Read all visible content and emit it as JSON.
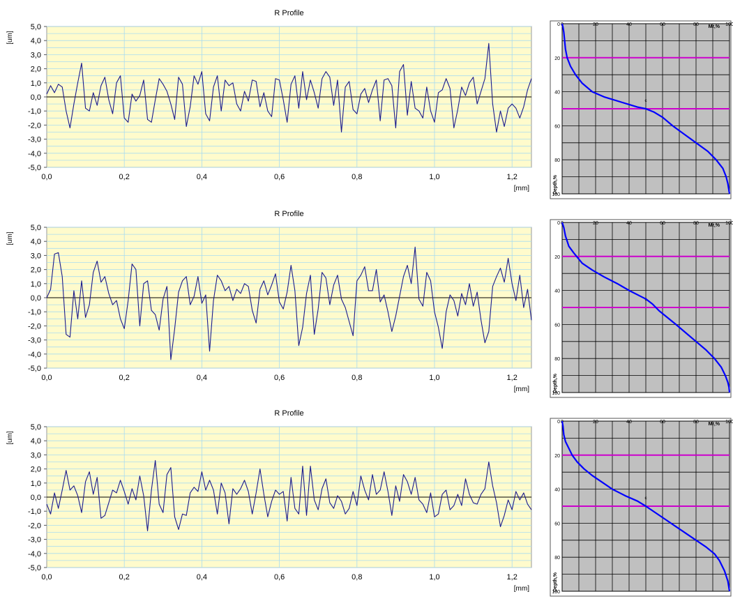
{
  "chart_data": [
    {
      "type": "line",
      "title": "R Profile",
      "xlabel": "[mm]",
      "ylabel": "[um]",
      "xlim": [
        0,
        1.25
      ],
      "ylim": [
        -5,
        5
      ],
      "xticks": [
        "0,0",
        "0,2",
        "0,4",
        "0,6",
        "0,8",
        "1,0",
        "1,2"
      ],
      "yticks": [
        "5,0",
        "4,0",
        "3,0",
        "2,0",
        "1,0",
        "0,0",
        "-1,0",
        "-2,0",
        "-3,0",
        "-4,0",
        "-5,0"
      ],
      "grid": true,
      "series": [
        {
          "x": [
            0.0,
            0.01,
            0.02,
            0.03,
            0.04,
            0.05,
            0.06,
            0.07,
            0.08,
            0.09,
            0.1,
            0.11,
            0.12,
            0.13,
            0.14,
            0.15,
            0.16,
            0.17,
            0.18,
            0.19,
            0.2,
            0.21,
            0.22,
            0.23,
            0.24,
            0.25,
            0.26,
            0.27,
            0.28,
            0.29,
            0.3,
            0.31,
            0.32,
            0.33,
            0.34,
            0.35,
            0.36,
            0.37,
            0.38,
            0.39,
            0.4,
            0.41,
            0.42,
            0.43,
            0.44,
            0.45,
            0.46,
            0.47,
            0.48,
            0.49,
            0.5,
            0.51,
            0.52,
            0.53,
            0.54,
            0.55,
            0.56,
            0.57,
            0.58,
            0.59,
            0.6,
            0.61,
            0.62,
            0.63,
            0.64,
            0.65,
            0.66,
            0.67,
            0.68,
            0.69,
            0.7,
            0.71,
            0.72,
            0.73,
            0.74,
            0.75,
            0.76,
            0.77,
            0.78,
            0.79,
            0.8,
            0.81,
            0.82,
            0.83,
            0.84,
            0.85,
            0.86,
            0.87,
            0.88,
            0.89,
            0.9,
            0.91,
            0.92,
            0.93,
            0.94,
            0.95,
            0.96,
            0.97,
            0.98,
            0.99,
            1.0,
            1.01,
            1.02,
            1.03,
            1.04,
            1.05,
            1.06,
            1.07,
            1.08,
            1.09,
            1.1,
            1.11,
            1.12,
            1.13,
            1.14,
            1.15,
            1.16,
            1.17,
            1.18,
            1.19,
            1.2,
            1.21,
            1.22,
            1.23,
            1.24,
            1.25
          ],
          "y": [
            0.2,
            0.8,
            0.3,
            0.9,
            0.7,
            -1.0,
            -2.2,
            -0.5,
            1.0,
            2.4,
            -0.8,
            -1.0,
            0.3,
            -0.6,
            0.8,
            1.4,
            -0.2,
            -1.2,
            1.0,
            1.5,
            -1.5,
            -1.8,
            0.2,
            -0.3,
            0.1,
            1.2,
            -1.6,
            -1.8,
            -0.2,
            1.3,
            0.9,
            0.4,
            -0.5,
            -1.6,
            1.4,
            0.9,
            -2.1,
            -0.7,
            1.5,
            0.9,
            1.8,
            -1.2,
            -1.7,
            0.7,
            1.5,
            -1.0,
            1.2,
            0.8,
            1.0,
            -0.5,
            -1.0,
            0.4,
            -0.3,
            1.2,
            1.1,
            -0.7,
            0.3,
            -1.0,
            -1.4,
            1.3,
            1.2,
            -0.2,
            -1.8,
            0.9,
            1.5,
            -0.8,
            1.8,
            -0.2,
            1.2,
            0.3,
            -0.8,
            1.3,
            1.8,
            1.4,
            -0.6,
            1.2,
            -2.5,
            0.7,
            1.1,
            -0.9,
            -1.2,
            0.2,
            0.6,
            -0.4,
            0.5,
            1.2,
            -1.7,
            1.2,
            1.3,
            0.8,
            -2.2,
            1.8,
            2.3,
            -1.3,
            1.1,
            -0.8,
            -1.0,
            -1.5,
            0.7,
            -1.0,
            -1.8,
            0.3,
            0.5,
            1.3,
            0.6,
            -2.2,
            -0.9,
            0.7,
            0.1,
            1.0,
            1.4,
            -0.5,
            0.4,
            1.3,
            3.8,
            -0.5,
            -2.5,
            -1.0,
            -2.1,
            -0.8,
            -0.5,
            -0.8,
            -1.5,
            -0.7,
            0.5,
            1.3
          ]
        }
      ]
    },
    {
      "type": "line",
      "x_axis_label": "Mr,%",
      "y_axis_label": "Depth,%",
      "x_ticks": [
        "0",
        "20",
        "40",
        "60",
        "80",
        "100"
      ],
      "y_ticks": [
        "0",
        "20",
        "40",
        "60",
        "80",
        "100"
      ],
      "xlim": [
        0,
        100
      ],
      "ylim": [
        0,
        100
      ],
      "grid": true,
      "marker_text": "c",
      "marker_point": [
        50,
        46
      ],
      "reference_lines_depth": [
        20,
        50
      ],
      "series": [
        {
          "x": [
            0,
            0.5,
            1,
            1.5,
            2,
            3,
            5,
            8,
            12,
            18,
            25,
            35,
            45,
            50,
            55,
            60,
            66,
            73,
            80,
            87,
            92,
            96,
            98,
            99,
            99.5,
            100
          ],
          "y": [
            0,
            2,
            5,
            10,
            15,
            20,
            25,
            30,
            35,
            40,
            43,
            46,
            49,
            50,
            52,
            55,
            60,
            65,
            70,
            75,
            80,
            85,
            90,
            94,
            97,
            100
          ]
        }
      ]
    },
    {
      "type": "line",
      "title": "R Profile",
      "xlabel": "[mm]",
      "ylabel": "[um]",
      "xlim": [
        0,
        1.25
      ],
      "ylim": [
        -5,
        5
      ],
      "xticks": [
        "0,0",
        "0,2",
        "0,4",
        "0,6",
        "0,8",
        "1,0",
        "1,2"
      ],
      "yticks": [
        "5,0",
        "4,0",
        "3,0",
        "2,0",
        "1,0",
        "0,0",
        "-1,0",
        "-2,0",
        "-3,0",
        "-4,0",
        "-5,0"
      ],
      "grid": true,
      "series": [
        {
          "x": [
            0.0,
            0.01,
            0.02,
            0.03,
            0.04,
            0.05,
            0.06,
            0.07,
            0.08,
            0.09,
            0.1,
            0.11,
            0.12,
            0.13,
            0.14,
            0.15,
            0.16,
            0.17,
            0.18,
            0.19,
            0.2,
            0.21,
            0.22,
            0.23,
            0.24,
            0.25,
            0.26,
            0.27,
            0.28,
            0.29,
            0.3,
            0.31,
            0.32,
            0.33,
            0.34,
            0.35,
            0.36,
            0.37,
            0.38,
            0.39,
            0.4,
            0.41,
            0.42,
            0.43,
            0.44,
            0.45,
            0.46,
            0.47,
            0.48,
            0.49,
            0.5,
            0.51,
            0.52,
            0.53,
            0.54,
            0.55,
            0.56,
            0.57,
            0.58,
            0.59,
            0.6,
            0.61,
            0.62,
            0.63,
            0.64,
            0.65,
            0.66,
            0.67,
            0.68,
            0.69,
            0.7,
            0.71,
            0.72,
            0.73,
            0.74,
            0.75,
            0.76,
            0.77,
            0.78,
            0.79,
            0.8,
            0.81,
            0.82,
            0.83,
            0.84,
            0.85,
            0.86,
            0.87,
            0.88,
            0.89,
            0.9,
            0.91,
            0.92,
            0.93,
            0.94,
            0.95,
            0.96,
            0.97,
            0.98,
            0.99,
            1.0,
            1.01,
            1.02,
            1.03,
            1.04,
            1.05,
            1.06,
            1.07,
            1.08,
            1.09,
            1.1,
            1.11,
            1.12,
            1.13,
            1.14,
            1.15,
            1.16,
            1.17,
            1.18,
            1.19,
            1.2,
            1.21,
            1.22,
            1.23,
            1.24,
            1.25
          ],
          "y": [
            0.0,
            0.6,
            3.1,
            3.2,
            1.5,
            -2.6,
            -2.8,
            0.5,
            -1.5,
            1.2,
            -1.4,
            -0.5,
            1.8,
            2.6,
            1.1,
            1.5,
            0.3,
            -0.5,
            -0.2,
            -1.5,
            -2.2,
            -0.2,
            2.4,
            2.0,
            -2.0,
            1.0,
            1.2,
            -0.9,
            -1.2,
            -2.3,
            -0.1,
            0.8,
            -4.4,
            -2.2,
            0.4,
            1.2,
            1.5,
            -0.5,
            0.1,
            1.5,
            -0.4,
            0.2,
            -3.8,
            -0.2,
            1.6,
            1.2,
            0.5,
            0.8,
            -0.2,
            0.6,
            0.3,
            1.0,
            0.8,
            -0.9,
            -1.8,
            0.6,
            1.2,
            0.2,
            0.9,
            1.7,
            -0.3,
            -0.8,
            0.4,
            2.3,
            0.5,
            -3.4,
            -2.1,
            0.3,
            1.6,
            -2.6,
            -0.8,
            1.8,
            1.4,
            -0.5,
            0.9,
            1.6,
            -0.1,
            -0.7,
            -1.7,
            -2.7,
            1.2,
            1.6,
            2.2,
            0.5,
            0.5,
            2.0,
            -0.3,
            0.2,
            -1.0,
            -2.4,
            -1.3,
            0.1,
            1.5,
            2.3,
            1.0,
            3.6,
            -0.1,
            -0.6,
            1.8,
            1.2,
            -1.0,
            -2.1,
            -3.6,
            -1.0,
            0.2,
            -0.2,
            -1.3,
            0.3,
            -0.5,
            1.0,
            -0.6,
            0.4,
            -1.6,
            -3.2,
            -2.4,
            0.8,
            1.5,
            2.1,
            1.1,
            2.8,
            1.0,
            -0.2,
            1.6,
            -0.7,
            0.6,
            -1.6
          ]
        }
      ]
    },
    {
      "type": "line",
      "x_axis_label": "Mr,%",
      "y_axis_label": "Depth,%",
      "x_ticks": [
        "0",
        "20",
        "40",
        "60",
        "80",
        "100"
      ],
      "y_ticks": [
        "0",
        "20",
        "40",
        "60",
        "80",
        "100"
      ],
      "xlim": [
        0,
        100
      ],
      "ylim": [
        0,
        100
      ],
      "grid": true,
      "marker_text": "c",
      "marker_point": [
        50,
        46
      ],
      "reference_lines_depth": [
        20,
        50
      ],
      "series": [
        {
          "x": [
            0,
            1,
            2,
            4,
            7,
            12,
            18,
            25,
            33,
            40,
            46,
            50,
            54,
            58,
            63,
            68,
            74,
            80,
            86,
            91,
            95,
            97.5,
            99,
            99.7,
            100
          ],
          "y": [
            0,
            3,
            8,
            14,
            18,
            24,
            28,
            32,
            36,
            40,
            43,
            45,
            48,
            52,
            56,
            60,
            65,
            70,
            75,
            80,
            85,
            90,
            94,
            97,
            100
          ]
        }
      ]
    },
    {
      "type": "line",
      "title": "R Profile",
      "xlabel": "[mm]",
      "ylabel": "[um]",
      "xlim": [
        0,
        1.25
      ],
      "ylim": [
        -5,
        5
      ],
      "xticks": [
        "0,0",
        "0,2",
        "0,4",
        "0,6",
        "0,8",
        "1,0",
        "1,2"
      ],
      "yticks": [
        "5,0",
        "4,0",
        "3,0",
        "2,0",
        "1,0",
        "0,0",
        "-1,0",
        "-2,0",
        "-3,0",
        "-4,0",
        "-5,0"
      ],
      "grid": true,
      "series": [
        {
          "x": [
            0.0,
            0.01,
            0.02,
            0.03,
            0.04,
            0.05,
            0.06,
            0.07,
            0.08,
            0.09,
            0.1,
            0.11,
            0.12,
            0.13,
            0.14,
            0.15,
            0.16,
            0.17,
            0.18,
            0.19,
            0.2,
            0.21,
            0.22,
            0.23,
            0.24,
            0.25,
            0.26,
            0.27,
            0.28,
            0.29,
            0.3,
            0.31,
            0.32,
            0.33,
            0.34,
            0.35,
            0.36,
            0.37,
            0.38,
            0.39,
            0.4,
            0.41,
            0.42,
            0.43,
            0.44,
            0.45,
            0.46,
            0.47,
            0.48,
            0.49,
            0.5,
            0.51,
            0.52,
            0.53,
            0.54,
            0.55,
            0.56,
            0.57,
            0.58,
            0.59,
            0.6,
            0.61,
            0.62,
            0.63,
            0.64,
            0.65,
            0.66,
            0.67,
            0.68,
            0.69,
            0.7,
            0.71,
            0.72,
            0.73,
            0.74,
            0.75,
            0.76,
            0.77,
            0.78,
            0.79,
            0.8,
            0.81,
            0.82,
            0.83,
            0.84,
            0.85,
            0.86,
            0.87,
            0.88,
            0.89,
            0.9,
            0.91,
            0.92,
            0.93,
            0.94,
            0.95,
            0.96,
            0.97,
            0.98,
            0.99,
            1.0,
            1.01,
            1.02,
            1.03,
            1.04,
            1.05,
            1.06,
            1.07,
            1.08,
            1.09,
            1.1,
            1.11,
            1.12,
            1.13,
            1.14,
            1.15,
            1.16,
            1.17,
            1.18,
            1.19,
            1.2,
            1.21,
            1.22,
            1.23,
            1.24,
            1.25
          ],
          "y": [
            -0.5,
            -1.2,
            0.3,
            -0.8,
            0.5,
            1.9,
            0.5,
            0.8,
            0.1,
            -1.1,
            1.1,
            1.8,
            0.2,
            1.4,
            -1.5,
            -1.3,
            -0.4,
            0.5,
            0.3,
            1.2,
            0.4,
            -0.5,
            0.6,
            -0.2,
            1.5,
            0.1,
            -2.4,
            0.5,
            2.6,
            -0.5,
            -1.1,
            1.6,
            2.1,
            -1.4,
            -2.3,
            -1.2,
            -1.3,
            0.3,
            0.7,
            0.4,
            1.8,
            0.5,
            1.2,
            0.5,
            -1.2,
            1.0,
            0.3,
            -1.9,
            0.6,
            0.2,
            0.6,
            1.2,
            0.4,
            -1.2,
            0.3,
            2.0,
            0.2,
            -1.4,
            -0.3,
            0.5,
            0.2,
            0.4,
            -1.7,
            1.4,
            -0.8,
            -1.2,
            2.2,
            -1.3,
            2.2,
            -0.2,
            -0.9,
            0.6,
            1.3,
            -0.4,
            -0.8,
            0.1,
            -0.3,
            -1.2,
            -0.8,
            0.4,
            -0.6,
            1.5,
            0.5,
            -0.2,
            1.6,
            0.2,
            0.5,
            1.8,
            0.4,
            -1.3,
            0.8,
            -0.3,
            1.6,
            1.1,
            0.2,
            1.4,
            -0.2,
            -0.5,
            -1.1,
            0.3,
            -1.4,
            -1.2,
            0.2,
            0.5,
            -0.9,
            -0.6,
            0.2,
            -0.6,
            1.3,
            0.2,
            -0.4,
            -0.5,
            0.2,
            0.6,
            2.5,
            0.8,
            -0.4,
            -2.1,
            -1.3,
            -0.2,
            -0.9,
            0.4,
            -0.2,
            0.3,
            -0.5,
            -0.9
          ]
        }
      ]
    },
    {
      "type": "line",
      "x_axis_label": "Mr,%",
      "y_axis_label": "Depth,%",
      "x_ticks": [
        "0",
        "20",
        "40",
        "60",
        "80",
        "100"
      ],
      "y_ticks": [
        "0",
        "20",
        "40",
        "60",
        "80",
        "100"
      ],
      "xlim": [
        0,
        100
      ],
      "ylim": [
        0,
        100
      ],
      "grid": true,
      "marker_text": "c",
      "marker_point": [
        50,
        46
      ],
      "reference_lines_depth": [
        20,
        50
      ],
      "series": [
        {
          "x": [
            0,
            0.5,
            1,
            2,
            4,
            6,
            9,
            13,
            18,
            24,
            30,
            38,
            45,
            50,
            56,
            62,
            68,
            74,
            80,
            86,
            91,
            94,
            97,
            99,
            100
          ],
          "y": [
            0,
            3,
            8,
            12,
            16,
            20,
            24,
            28,
            32,
            36,
            40,
            44,
            47,
            50,
            54,
            58,
            62,
            66,
            70,
            74,
            78,
            82,
            88,
            94,
            100
          ]
        }
      ]
    }
  ]
}
